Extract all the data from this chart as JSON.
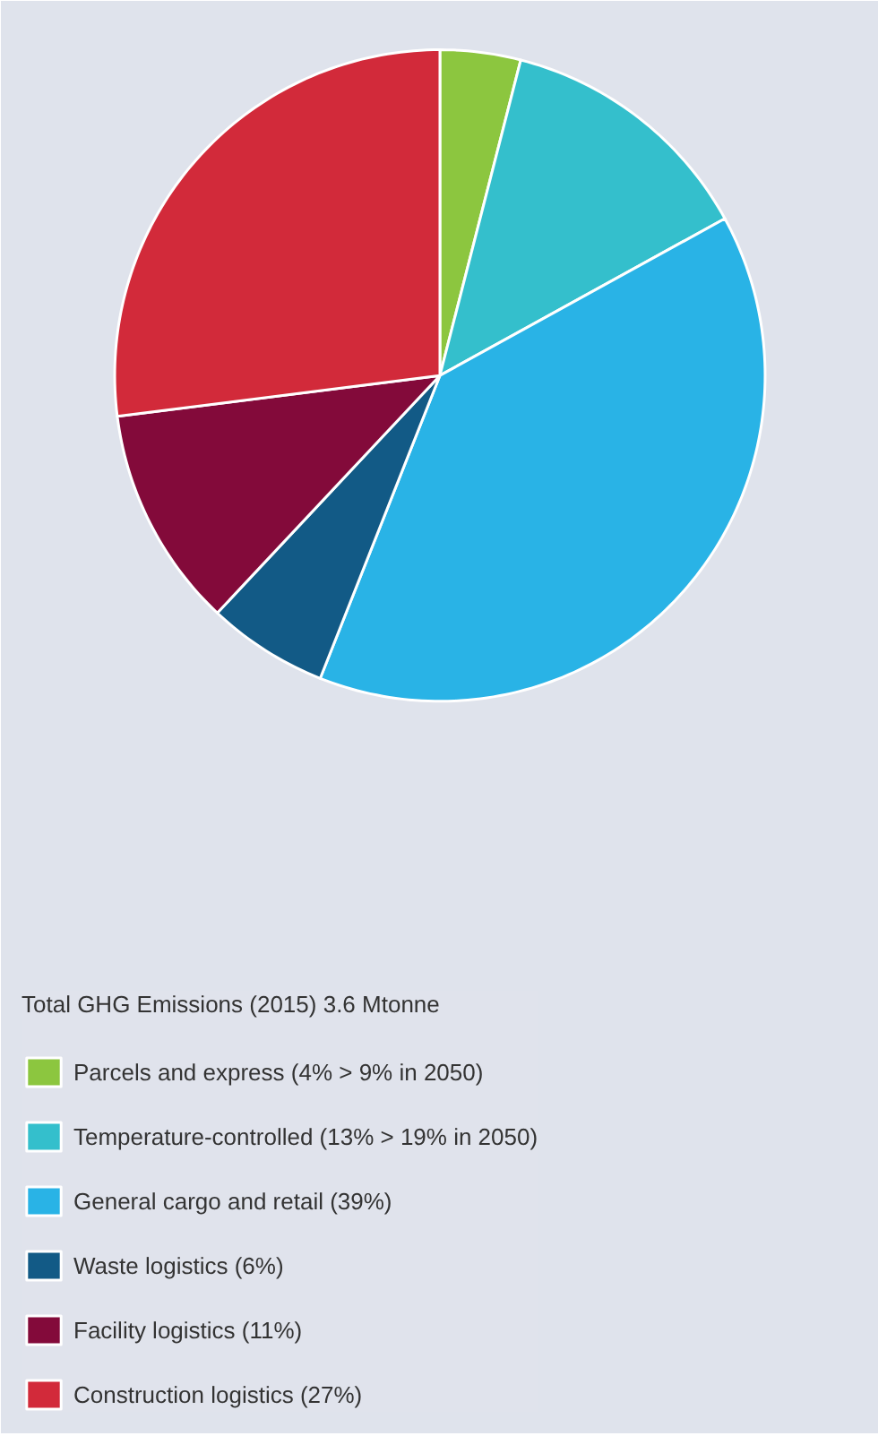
{
  "chart_data": {
    "type": "pie",
    "categories": [
      "Parcels and express (4% > 9% in 2050)",
      "Temperature-controlled (13% > 19% in 2050)",
      "General cargo and retail (39%)",
      "Waste logistics (6%)",
      "Facility logistics (11%)",
      "Construction logistics (27%)"
    ],
    "values": [
      4,
      13,
      39,
      6,
      11,
      27
    ],
    "colors": [
      "#8cc63f",
      "#34bfcc",
      "#29b3e6",
      "#125a86",
      "#830a3a",
      "#d22a3a"
    ],
    "legend_title": "Total GHG Emissions (2015) 3.6 Mtonne",
    "legend": "bottom"
  }
}
